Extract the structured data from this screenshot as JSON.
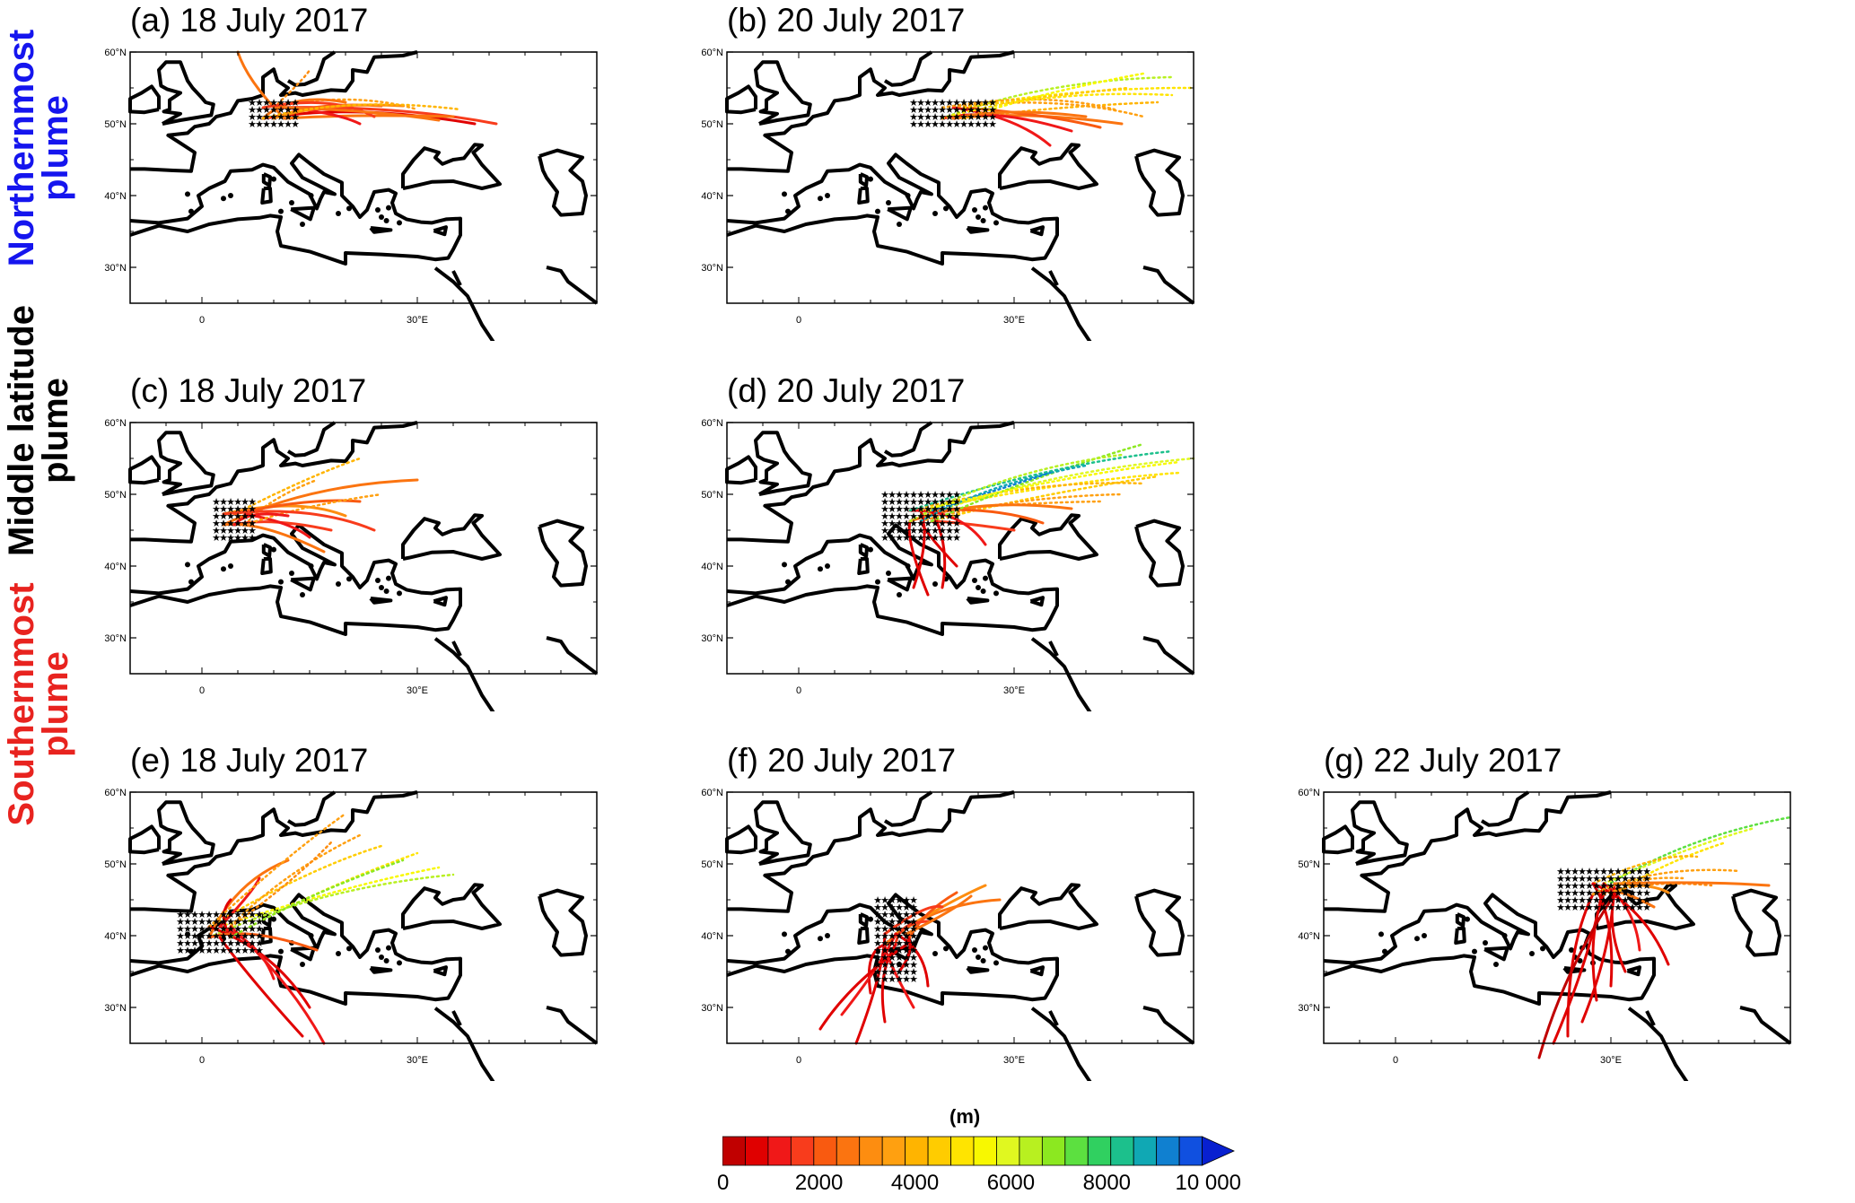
{
  "row_labels": [
    {
      "line1": "Northernmost",
      "line2": "plume",
      "color": "#1515ee"
    },
    {
      "line1": "Middle latitude",
      "line2": "plume",
      "color": "#000000"
    },
    {
      "line1": "Southernmost",
      "line2": "plume",
      "color": "#e8231f"
    }
  ],
  "panels": [
    {
      "id": "a",
      "title": "(a) 18 July 2017",
      "source_lon": [
        7,
        13
      ],
      "source_lat": [
        50,
        53
      ]
    },
    {
      "id": "b",
      "title": "(b) 20 July 2017",
      "source_lon": [
        16,
        27
      ],
      "source_lat": [
        50,
        53
      ]
    },
    {
      "id": "c",
      "title": "(c) 18 July 2017",
      "source_lon": [
        2,
        7
      ],
      "source_lat": [
        44,
        49
      ]
    },
    {
      "id": "d",
      "title": "(d) 20 July 2017",
      "source_lon": [
        12,
        22
      ],
      "source_lat": [
        44,
        50
      ]
    },
    {
      "id": "e",
      "title": "(e) 18 July 2017",
      "source_lon": [
        -3,
        8
      ],
      "source_lat": [
        38,
        43
      ]
    },
    {
      "id": "f",
      "title": "(f) 20 July 2017",
      "source_lon": [
        11,
        16
      ],
      "source_lat": [
        34,
        45
      ]
    },
    {
      "id": "g",
      "title": "(g) 22 July 2017",
      "source_lon": [
        23,
        35
      ],
      "source_lat": [
        44,
        49
      ]
    }
  ],
  "axes": {
    "lon_range": [
      -10,
      55
    ],
    "lat_range": [
      25,
      60
    ],
    "lon_ticks": [
      {
        "value": 0,
        "label": "0"
      },
      {
        "value": 30,
        "label": "30°E"
      }
    ],
    "lat_ticks": [
      {
        "value": 30,
        "label": "30°N"
      },
      {
        "value": 40,
        "label": "40°N"
      },
      {
        "value": 50,
        "label": "50°N"
      },
      {
        "value": 60,
        "label": "60°N"
      }
    ]
  },
  "colorbar": {
    "title": "(m)",
    "min": 0,
    "max": 10000,
    "tick_labels": [
      "0",
      "2000",
      "4000",
      "6000",
      "8000",
      "10 000"
    ],
    "colors": [
      "#c00000",
      "#e00000",
      "#f01818",
      "#f83c1c",
      "#f95a10",
      "#fb7410",
      "#fd8d10",
      "#ffa010",
      "#ffb400",
      "#ffcc00",
      "#ffe400",
      "#f8f800",
      "#e0f820",
      "#b8f020",
      "#8ce820",
      "#5ce040",
      "#30d060",
      "#1cc08c",
      "#10a8b4",
      "#1080d0",
      "#1050e0",
      "#0820d0"
    ]
  }
}
